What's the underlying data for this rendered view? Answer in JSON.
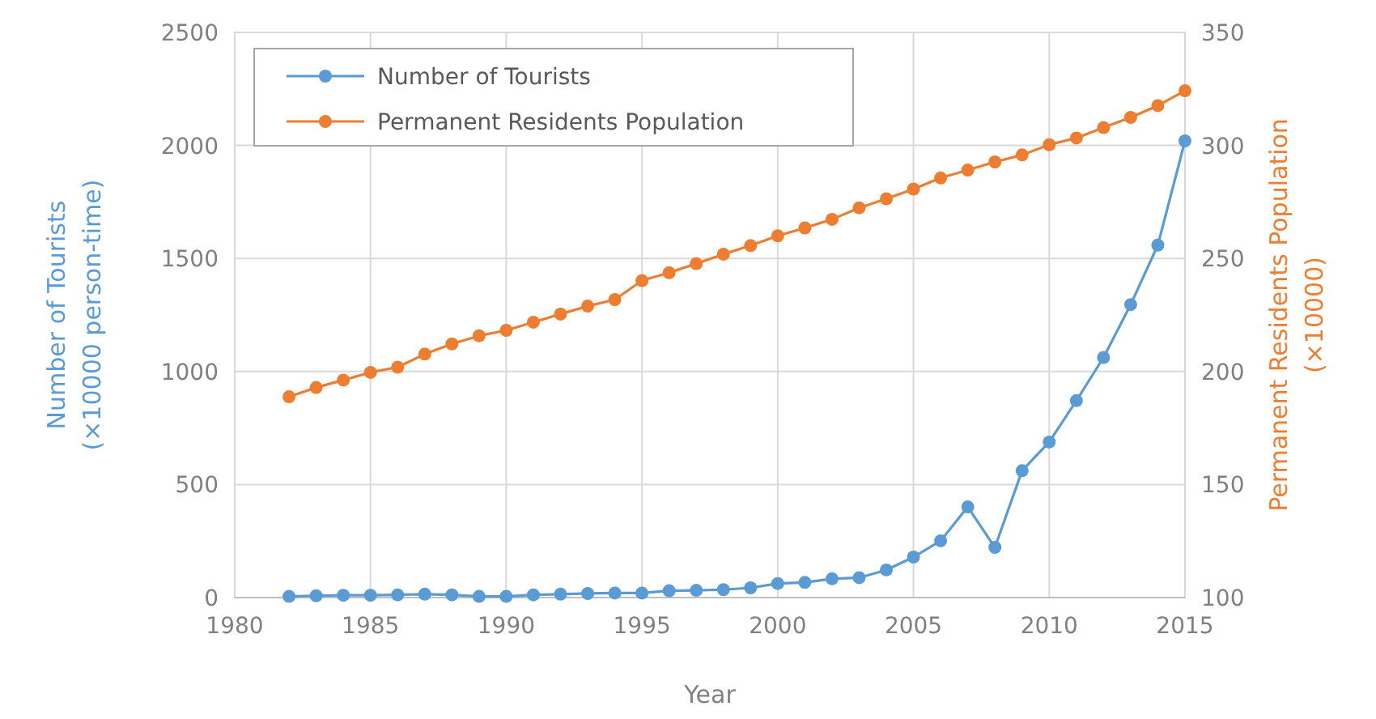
{
  "chart_data": {
    "type": "line",
    "xlabel": "Year",
    "ylabel": "Number of Tourists\n(×10000 person-time)",
    "y2label": "Permanent Residents Population\n(×10000)",
    "x": [
      1982,
      1983,
      1984,
      1985,
      1986,
      1987,
      1988,
      1989,
      1990,
      1991,
      1992,
      1993,
      1994,
      1995,
      1996,
      1997,
      1998,
      1999,
      2000,
      2001,
      2002,
      2003,
      2004,
      2005,
      2006,
      2007,
      2008,
      2009,
      2010,
      2011,
      2012,
      2013,
      2014,
      2015
    ],
    "series": [
      {
        "name": "Number of Tourists",
        "color": "#5b9bd5",
        "values": [
          5,
          8,
          10,
          10,
          12,
          15,
          12,
          5,
          5,
          12,
          15,
          18,
          20,
          20,
          30,
          32,
          35,
          43,
          62,
          67,
          83,
          88,
          122,
          179,
          251,
          401,
          222,
          561,
          688,
          871,
          1062,
          1296,
          1559,
          2020
        ]
      },
      {
        "name": "Permanent Residents Population",
        "color": "#ed7d31",
        "axis": "y2",
        "values": [
          188.8,
          192.9,
          196.2,
          199.6,
          201.9,
          207.7,
          212.2,
          215.8,
          218.2,
          221.8,
          225.4,
          228.9,
          231.8,
          240.2,
          243.7,
          247.7,
          251.9,
          255.7,
          260,
          263.5,
          267.3,
          272.4,
          276.4,
          280.7,
          285.6,
          289.1,
          292.7,
          295.8,
          300.3,
          303.3,
          307.9,
          312.4,
          317.6,
          324.2
        ]
      }
    ],
    "xlim": [
      1980,
      2015
    ],
    "xticks": [
      1980,
      1985,
      1990,
      1995,
      2000,
      2005,
      2010,
      2015
    ],
    "ylim": [
      0,
      2500
    ],
    "yticks": [
      0,
      500,
      1000,
      1500,
      2000,
      2500
    ],
    "y2lim": [
      100,
      350
    ],
    "y2ticks": [
      100,
      150,
      200,
      250,
      300,
      350
    ],
    "grid": true,
    "legend": "top left",
    "marker": "circle",
    "line_style": "solid"
  }
}
